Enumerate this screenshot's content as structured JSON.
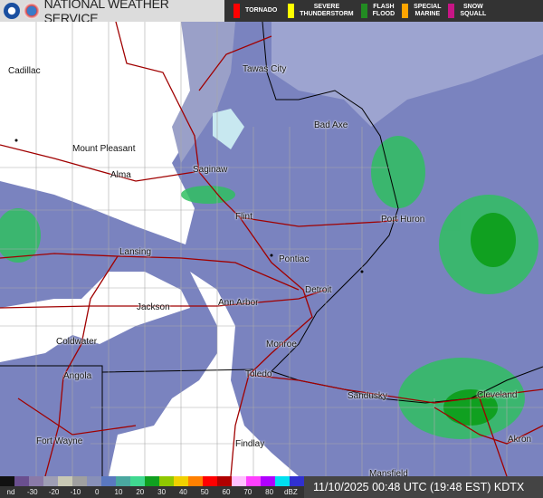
{
  "header": {
    "title": "NATIONAL WEATHER SERVICE",
    "warnings": [
      {
        "label": "TORNADO",
        "color": "#ff0000"
      },
      {
        "label": "SEVERE\nTHUNDERSTORM",
        "color": "#ffff00"
      },
      {
        "label": "FLASH\nFLOOD",
        "color": "#228b22"
      },
      {
        "label": "SPECIAL\nMARINE",
        "color": "#ffa500"
      },
      {
        "label": "SNOW\nSQUALL",
        "color": "#c71585"
      }
    ]
  },
  "cities": [
    "Cadillac",
    "Tawas City",
    "Bad Axe",
    "Mount Pleasant",
    "Alma",
    "Saginaw",
    "Flint",
    "Port Huron",
    "Lansing",
    "Pontiac",
    "Ann Arbor",
    "Detroit",
    "Jackson",
    "Coldwater",
    "Monroe",
    "Angola",
    "Toledo",
    "Sandusky",
    "Cleveland",
    "Fort Wayne",
    "Findlay",
    "Akron",
    "Mansfield"
  ],
  "legend": {
    "ticks": [
      "nd",
      "-30",
      "-20",
      "-10",
      "0",
      "10",
      "20",
      "30",
      "40",
      "50",
      "60",
      "70",
      "80",
      "dBZ"
    ],
    "colors": [
      "#111111",
      "#6a4f8f",
      "#8a7aa8",
      "#9e9eb4",
      "#c8c8b4",
      "#a0a0a0",
      "#8890b8",
      "#5a78c0",
      "#4aa8a0",
      "#40d890",
      "#10a020",
      "#90c800",
      "#f0d000",
      "#ff8000",
      "#ff0000",
      "#b00000",
      "#ffc0ff",
      "#ff40ff",
      "#b000ff",
      "#00e0f0",
      "#3030d0"
    ]
  },
  "status": "11/10/2025 00:48 UTC (19:48 EST)  KDTX"
}
